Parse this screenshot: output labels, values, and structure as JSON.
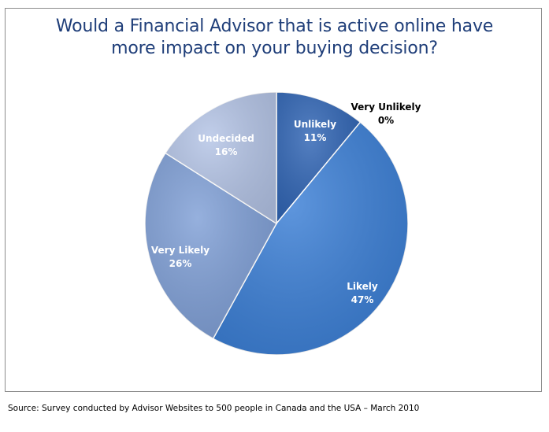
{
  "chart_data": {
    "type": "pie",
    "title": "Would a Financial Advisor that is active online have more impact on your buying decision?",
    "title_lines": [
      "Would a Financial Advisor that is active online have",
      "more impact on your buying decision?"
    ],
    "slices": [
      {
        "label": "Very Unlikely",
        "value": 0,
        "value_label": "0%",
        "color": "#1f3e79"
      },
      {
        "label": "Unlikely",
        "value": 11,
        "value_label": "11%",
        "color": "#2f64b4"
      },
      {
        "label": "Likely",
        "value": 47,
        "value_label": "47%",
        "color": "#3b7fd6"
      },
      {
        "label": "Very Likely",
        "value": 26,
        "value_label": "26%",
        "color": "#7f9fd6"
      },
      {
        "label": "Undecided",
        "value": 16,
        "value_label": "16%",
        "color": "#b4c4e6"
      }
    ],
    "start_angle": "top",
    "direction": "clockwise",
    "legend": "none"
  },
  "footer": {
    "source": "Source: Survey conducted by Advisor Websites to 500 people in Canada and the USA – March 2010"
  }
}
